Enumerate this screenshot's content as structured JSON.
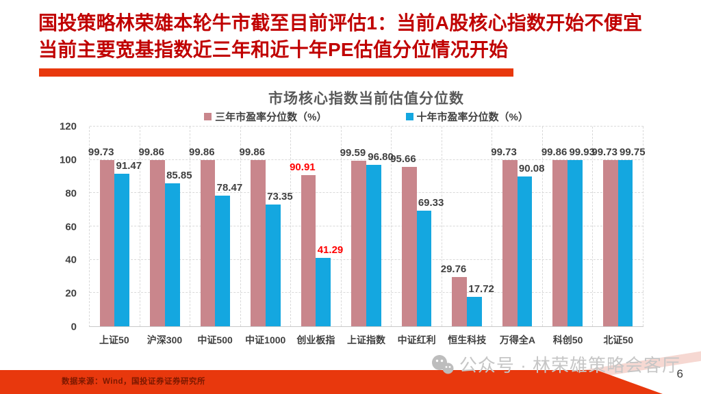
{
  "slide": {
    "title_line1": "国投策略林荣雄本轮牛市截至目前评估1：当前A股核心指数开始不便宜",
    "title_line2": "当前主要宽基指数近三年和近十年PE估值分位情况开始",
    "source_note": "数据来源：Wind，国投证券证券研究所",
    "watermark": "公众号 · 林荣雄策略会客厅",
    "watermark_icon": "wechat-icon",
    "page_number": "6"
  },
  "colors": {
    "title_red": "#C00000",
    "accent_red": "#E8380D",
    "bar_pink": "#C9868C",
    "bar_blue": "#14A7E0",
    "label_dark": "#404040",
    "grid": "#D9D9D9",
    "chart_title_gray": "#595959",
    "watermark_gray": "#C6C6C6",
    "footer_text": "#7B1800"
  },
  "chart_data": {
    "type": "bar",
    "title": "市场核心指数当前估值分位数",
    "categories": [
      "上证50",
      "沪深300",
      "中证500",
      "中证1000",
      "创业板指",
      "上证指数",
      "中证红利",
      "恒生科技",
      "万得全A",
      "科创50",
      "北证50"
    ],
    "series": [
      {
        "name": "三年市盈率分位数（%）",
        "color_key": "bar_pink",
        "values": [
          99.73,
          99.86,
          99.86,
          99.86,
          90.91,
          99.59,
          95.66,
          29.76,
          99.73,
          99.86,
          99.73
        ]
      },
      {
        "name": "十年市盈率分位数（%）",
        "color_key": "bar_blue",
        "values": [
          91.47,
          85.85,
          78.47,
          73.35,
          41.29,
          96.8,
          69.33,
          17.72,
          90.08,
          99.93,
          99.75
        ]
      }
    ],
    "ylim": [
      0,
      120
    ],
    "ytick_step": 20,
    "grid": "dashed",
    "legend_position": "top",
    "highlight_category_index": 4,
    "highlight_label_color": "#FF0000"
  }
}
